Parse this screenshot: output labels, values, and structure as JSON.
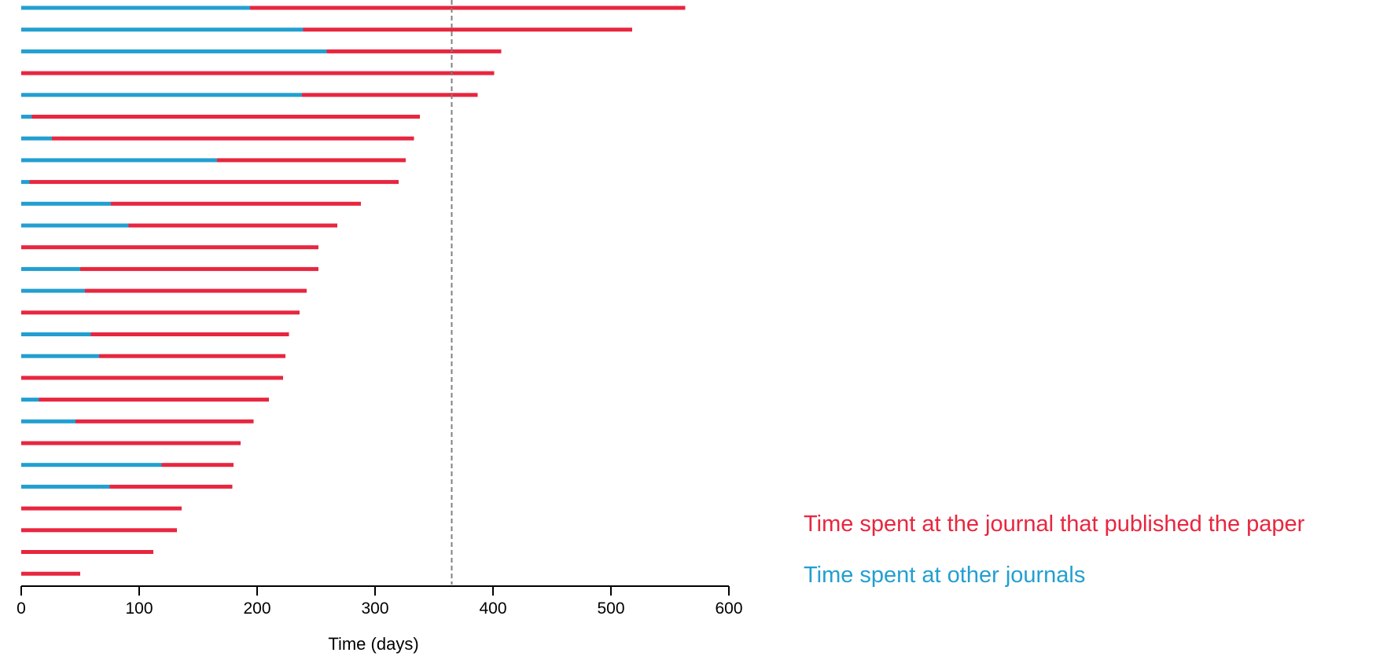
{
  "chart_data": {
    "type": "bar",
    "orientation": "horizontal",
    "stacked": true,
    "xlabel": "Time (days)",
    "xlim": [
      0,
      600
    ],
    "xticks": [
      "0",
      "100",
      "200",
      "300",
      "400",
      "500",
      "600"
    ],
    "reference_line": {
      "x": 365,
      "style": "dashed"
    },
    "grid": false,
    "legend_placement": "bottom-right",
    "series": [
      {
        "name": "Time spent at the journal that published the paper",
        "color": "#e8263f",
        "values": [
          369,
          279,
          148,
          401,
          149,
          329,
          307,
          160,
          313,
          212,
          177,
          252,
          202,
          188,
          236,
          168,
          158,
          222,
          195,
          151,
          186,
          61,
          104,
          136,
          132,
          112,
          50
        ]
      },
      {
        "name": "Time spent at other journals",
        "color": "#229fd0",
        "values": [
          194,
          239,
          259,
          0,
          238,
          9,
          26,
          166,
          7,
          76,
          91,
          0,
          50,
          54,
          0,
          59,
          66,
          0,
          15,
          46,
          0,
          119,
          75,
          0,
          0,
          0,
          0
        ]
      }
    ]
  }
}
